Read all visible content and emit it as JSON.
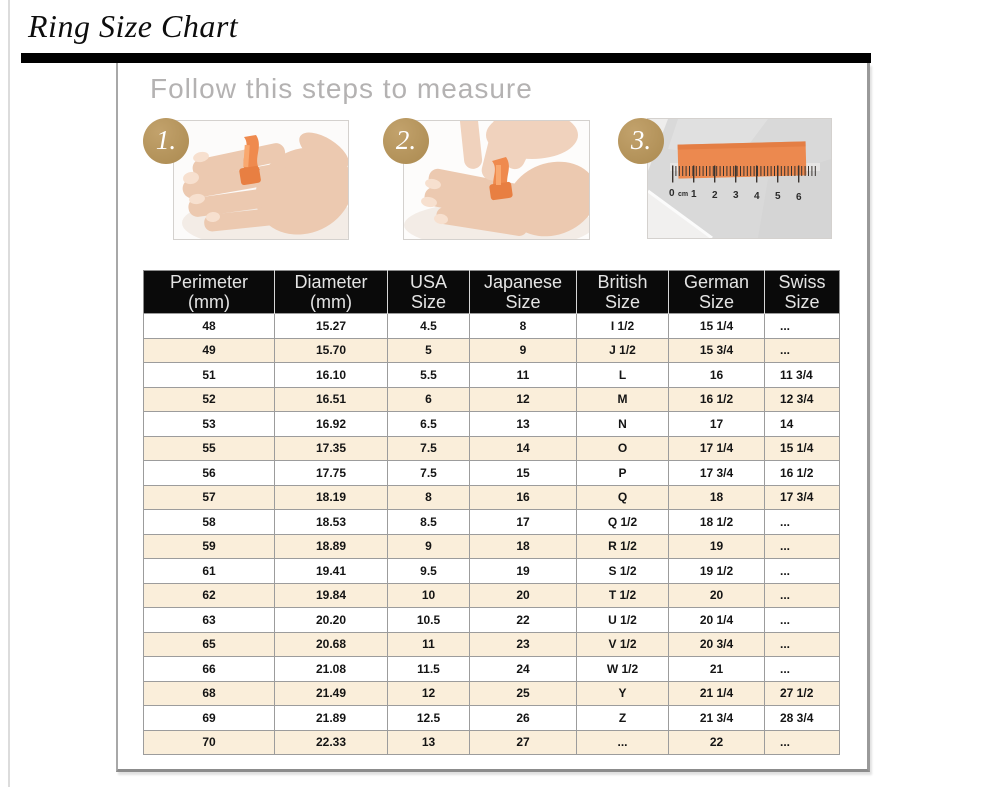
{
  "page": {
    "title": "Ring Size Chart",
    "subtitle": "Follow this steps to measure"
  },
  "steps": [
    {
      "label": "1."
    },
    {
      "label": "2."
    },
    {
      "label": "3."
    }
  ],
  "ruler": {
    "labels": [
      "0",
      "cm",
      "1",
      "2",
      "3",
      "4",
      "5",
      "6"
    ]
  },
  "colors": {
    "accent_gold": "#b5945f",
    "ribbon_orange": "#ee8a4e",
    "row_cream": "#faeeda",
    "header_black": "#0a0a0a",
    "border_gray": "#9c9c9c",
    "subtitle_gray": "#b4b2b2"
  },
  "table": {
    "headers": [
      [
        "Perimeter",
        "(mm)"
      ],
      [
        "Diameter",
        "(mm)"
      ],
      [
        "USA",
        "Size"
      ],
      [
        "Japanese",
        "Size"
      ],
      [
        "British",
        "Size"
      ],
      [
        "German",
        "Size"
      ],
      [
        "Swiss",
        "Size"
      ]
    ],
    "column_slugs": [
      "perimeter",
      "diameter",
      "usa",
      "japanese",
      "british",
      "german",
      "swiss"
    ],
    "rows": [
      [
        "48",
        "15.27",
        "4.5",
        "8",
        "I 1/2",
        "15 1/4",
        "..."
      ],
      [
        "49",
        "15.70",
        "5",
        "9",
        "J 1/2",
        "15 3/4",
        "..."
      ],
      [
        "51",
        "16.10",
        "5.5",
        "11",
        "L",
        "16",
        "11 3/4"
      ],
      [
        "52",
        "16.51",
        "6",
        "12",
        "M",
        "16 1/2",
        "12 3/4"
      ],
      [
        "53",
        "16.92",
        "6.5",
        "13",
        "N",
        "17",
        "14"
      ],
      [
        "55",
        "17.35",
        "7.5",
        "14",
        "O",
        "17 1/4",
        "15 1/4"
      ],
      [
        "56",
        "17.75",
        "7.5",
        "15",
        "P",
        "17 3/4",
        "16 1/2"
      ],
      [
        "57",
        "18.19",
        "8",
        "16",
        "Q",
        "18",
        "17 3/4"
      ],
      [
        "58",
        "18.53",
        "8.5",
        "17",
        "Q 1/2",
        "18 1/2",
        "..."
      ],
      [
        "59",
        "18.89",
        "9",
        "18",
        "R 1/2",
        "19",
        "..."
      ],
      [
        "61",
        "19.41",
        "9.5",
        "19",
        "S 1/2",
        "19 1/2",
        "..."
      ],
      [
        "62",
        "19.84",
        "10",
        "20",
        "T 1/2",
        "20",
        "..."
      ],
      [
        "63",
        "20.20",
        "10.5",
        "22",
        "U 1/2",
        "20 1/4",
        "..."
      ],
      [
        "65",
        "20.68",
        "11",
        "23",
        "V 1/2",
        "20 3/4",
        "..."
      ],
      [
        "66",
        "21.08",
        "11.5",
        "24",
        "W 1/2",
        "21",
        "..."
      ],
      [
        "68",
        "21.49",
        "12",
        "25",
        "Y",
        "21 1/4",
        "27 1/2"
      ],
      [
        "69",
        "21.89",
        "12.5",
        "26",
        "Z",
        "21 3/4",
        "28 3/4"
      ],
      [
        "70",
        "22.33",
        "13",
        "27",
        "...",
        "22",
        "..."
      ]
    ]
  }
}
